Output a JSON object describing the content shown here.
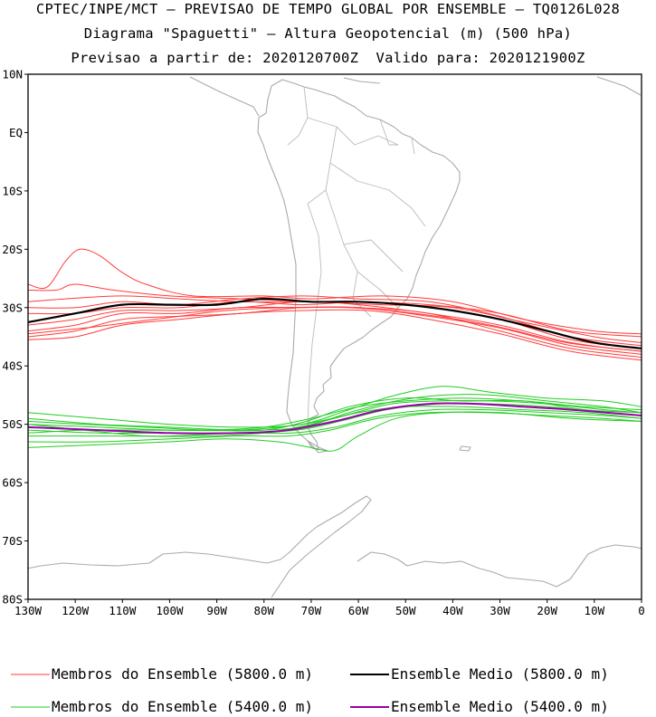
{
  "header": {
    "line1": "CPTEC/INPE/MCT — PREVISAO DE TEMPO GLOBAL POR ENSEMBLE — TQ0126L028",
    "line2": "Diagrama \"Spaguetti\" — Altura Geopotencial (m) (500 hPa)",
    "line3": "Previsao a partir de: 2020120700Z  Valido para: 2020121900Z"
  },
  "map": {
    "lon_range": [
      -130,
      0
    ],
    "lat_range": [
      -80,
      10
    ],
    "lat_ticks": [
      "10N",
      "EQ",
      "10S",
      "20S",
      "30S",
      "40S",
      "50S",
      "60S",
      "70S",
      "80S"
    ],
    "lon_ticks": [
      "130W",
      "120W",
      "110W",
      "100W",
      "90W",
      "80W",
      "70W",
      "60W",
      "50W",
      "40W",
      "30W",
      "20W",
      "10W",
      "0"
    ],
    "coastline_color": "#aaaaaa"
  },
  "legend": {
    "member_5800": "Membros do Ensemble (5800.0 m)",
    "mean_5800": "Ensemble Medio (5800.0 m)",
    "member_5400": "Membros do Ensemble (5400.0 m)",
    "mean_5400": "Ensemble Medio (5400.0 m)"
  },
  "colors": {
    "member_5800": "#ff3b3b",
    "mean_5800": "#000000",
    "member_5400": "#22cc22",
    "mean_5400": "#9900aa"
  },
  "chart_data": {
    "type": "line",
    "x_unit": "longitude (deg)",
    "y_unit": "latitude (deg)",
    "contour_5800_mean": [
      [
        -130,
        -32.5
      ],
      [
        -120,
        -31
      ],
      [
        -110,
        -29.5
      ],
      [
        -100,
        -29.5
      ],
      [
        -90,
        -29.5
      ],
      [
        -80,
        -28.5
      ],
      [
        -70,
        -29
      ],
      [
        -60,
        -29
      ],
      [
        -50,
        -29.5
      ],
      [
        -40,
        -30.5
      ],
      [
        -30,
        -32
      ],
      [
        -20,
        -34
      ],
      [
        -10,
        -36
      ],
      [
        0,
        -37
      ]
    ],
    "contour_5800_members": [
      [
        [
          -130,
          -26
        ],
        [
          -126,
          -26.5
        ],
        [
          -122,
          -22
        ],
        [
          -119,
          -20
        ],
        [
          -115,
          -21
        ],
        [
          -110,
          -24
        ],
        [
          -105,
          -26
        ],
        [
          -95,
          -28
        ],
        [
          -80,
          -28
        ],
        [
          -70,
          -28.5
        ],
        [
          -55,
          -28
        ],
        [
          -40,
          -29
        ],
        [
          -25,
          -32
        ],
        [
          -10,
          -34
        ],
        [
          0,
          -34.5
        ]
      ],
      [
        [
          -130,
          -27
        ],
        [
          -124,
          -27
        ],
        [
          -120,
          -26
        ],
        [
          -112,
          -27
        ],
        [
          -100,
          -28
        ],
        [
          -85,
          -28.5
        ],
        [
          -70,
          -29
        ],
        [
          -55,
          -29.5
        ],
        [
          -40,
          -30
        ],
        [
          -25,
          -32.5
        ],
        [
          -10,
          -35
        ],
        [
          0,
          -36
        ]
      ],
      [
        [
          -130,
          -29
        ],
        [
          -122,
          -28.5
        ],
        [
          -110,
          -28
        ],
        [
          -98,
          -28.5
        ],
        [
          -85,
          -29
        ],
        [
          -72,
          -29
        ],
        [
          -60,
          -29
        ],
        [
          -45,
          -29.5
        ],
        [
          -30,
          -31
        ],
        [
          -15,
          -34
        ],
        [
          0,
          -35
        ]
      ],
      [
        [
          -130,
          -30
        ],
        [
          -120,
          -30
        ],
        [
          -110,
          -29
        ],
        [
          -98,
          -29.5
        ],
        [
          -85,
          -28.5
        ],
        [
          -72,
          -28
        ],
        [
          -60,
          -28.5
        ],
        [
          -45,
          -29
        ],
        [
          -30,
          -31.5
        ],
        [
          -15,
          -35
        ],
        [
          0,
          -36.5
        ]
      ],
      [
        [
          -130,
          -31
        ],
        [
          -120,
          -31
        ],
        [
          -110,
          -30
        ],
        [
          -98,
          -30
        ],
        [
          -85,
          -29
        ],
        [
          -72,
          -29.5
        ],
        [
          -58,
          -29
        ],
        [
          -45,
          -30
        ],
        [
          -30,
          -32
        ],
        [
          -15,
          -35.5
        ],
        [
          0,
          -37
        ]
      ],
      [
        [
          -130,
          -33
        ],
        [
          -120,
          -32
        ],
        [
          -110,
          -30.5
        ],
        [
          -98,
          -30.5
        ],
        [
          -85,
          -30
        ],
        [
          -72,
          -29
        ],
        [
          -60,
          -29.5
        ],
        [
          -45,
          -31
        ],
        [
          -30,
          -33
        ],
        [
          -15,
          -36
        ],
        [
          0,
          -37.5
        ]
      ],
      [
        [
          -130,
          -34
        ],
        [
          -120,
          -33
        ],
        [
          -110,
          -31
        ],
        [
          -98,
          -31
        ],
        [
          -85,
          -30
        ],
        [
          -72,
          -30
        ],
        [
          -60,
          -30
        ],
        [
          -45,
          -31.5
        ],
        [
          -30,
          -33.5
        ],
        [
          -15,
          -36.5
        ],
        [
          0,
          -38
        ]
      ],
      [
        [
          -130,
          -35
        ],
        [
          -120,
          -34
        ],
        [
          -110,
          -32
        ],
        [
          -98,
          -31.5
        ],
        [
          -85,
          -31
        ],
        [
          -72,
          -30
        ],
        [
          -60,
          -30
        ],
        [
          -45,
          -31
        ],
        [
          -30,
          -34
        ],
        [
          -15,
          -37
        ],
        [
          0,
          -38.5
        ]
      ],
      [
        [
          -130,
          -35.5
        ],
        [
          -120,
          -35
        ],
        [
          -110,
          -33
        ],
        [
          -98,
          -32
        ],
        [
          -85,
          -31
        ],
        [
          -72,
          -30.5
        ],
        [
          -58,
          -30.5
        ],
        [
          -45,
          -32
        ],
        [
          -30,
          -34.5
        ],
        [
          -15,
          -37.5
        ],
        [
          0,
          -39
        ]
      ],
      [
        [
          -130,
          -34.5
        ],
        [
          -118,
          -33.5
        ],
        [
          -108,
          -32.5
        ],
        [
          -98,
          -31.5
        ],
        [
          -88,
          -30.5
        ],
        [
          -75,
          -30
        ],
        [
          -62,
          -30
        ],
        [
          -48,
          -31
        ],
        [
          -32,
          -33
        ],
        [
          -16,
          -36
        ],
        [
          0,
          -37.5
        ]
      ]
    ],
    "contour_5400_mean": [
      [
        -130,
        -50.5
      ],
      [
        -115,
        -51
      ],
      [
        -100,
        -51.5
      ],
      [
        -85,
        -51.5
      ],
      [
        -75,
        -51
      ],
      [
        -65,
        -49.5
      ],
      [
        -55,
        -47.5
      ],
      [
        -45,
        -46.5
      ],
      [
        -35,
        -46.5
      ],
      [
        -25,
        -47
      ],
      [
        -15,
        -47.5
      ],
      [
        0,
        -48.5
      ]
    ],
    "contour_5400_members": [
      [
        [
          -130,
          -48
        ],
        [
          -115,
          -49
        ],
        [
          -100,
          -50
        ],
        [
          -85,
          -50.5
        ],
        [
          -72,
          -50
        ],
        [
          -62,
          -47.5
        ],
        [
          -52,
          -45
        ],
        [
          -42,
          -43.5
        ],
        [
          -32,
          -44.5
        ],
        [
          -20,
          -45.5
        ],
        [
          -8,
          -46
        ],
        [
          0,
          -47
        ]
      ],
      [
        [
          -130,
          -49
        ],
        [
          -115,
          -50
        ],
        [
          -100,
          -50.5
        ],
        [
          -85,
          -51
        ],
        [
          -72,
          -50.5
        ],
        [
          -62,
          -48
        ],
        [
          -52,
          -46
        ],
        [
          -42,
          -45
        ],
        [
          -32,
          -45
        ],
        [
          -20,
          -46
        ],
        [
          -8,
          -47
        ],
        [
          0,
          -48
        ]
      ],
      [
        [
          -130,
          -50
        ],
        [
          -115,
          -50.5
        ],
        [
          -100,
          -51
        ],
        [
          -85,
          -51
        ],
        [
          -72,
          -50
        ],
        [
          -63,
          -48.5
        ],
        [
          -53,
          -46.5
        ],
        [
          -43,
          -46
        ],
        [
          -32,
          -46
        ],
        [
          -20,
          -46.5
        ],
        [
          -8,
          -47.5
        ],
        [
          0,
          -48
        ]
      ],
      [
        [
          -130,
          -51
        ],
        [
          -115,
          -51.5
        ],
        [
          -100,
          -51.5
        ],
        [
          -85,
          -51.5
        ],
        [
          -73,
          -51
        ],
        [
          -64,
          -49.5
        ],
        [
          -54,
          -47.5
        ],
        [
          -43,
          -46.5
        ],
        [
          -32,
          -46.5
        ],
        [
          -20,
          -47
        ],
        [
          -8,
          -48
        ],
        [
          0,
          -48.5
        ]
      ],
      [
        [
          -130,
          -52
        ],
        [
          -115,
          -52
        ],
        [
          -100,
          -52
        ],
        [
          -85,
          -51.5
        ],
        [
          -74,
          -51.5
        ],
        [
          -65,
          -50.5
        ],
        [
          -55,
          -48.5
        ],
        [
          -44,
          -47.5
        ],
        [
          -33,
          -47.5
        ],
        [
          -20,
          -48
        ],
        [
          -8,
          -48.5
        ],
        [
          0,
          -49
        ]
      ],
      [
        [
          -130,
          -53
        ],
        [
          -115,
          -53
        ],
        [
          -100,
          -52.5
        ],
        [
          -85,
          -52
        ],
        [
          -75,
          -52
        ],
        [
          -66,
          -51
        ],
        [
          -56,
          -49
        ],
        [
          -45,
          -48
        ],
        [
          -33,
          -48
        ],
        [
          -20,
          -48.5
        ],
        [
          -8,
          -49
        ],
        [
          0,
          -49.5
        ]
      ],
      [
        [
          -130,
          -54
        ],
        [
          -115,
          -53.5
        ],
        [
          -100,
          -53
        ],
        [
          -88,
          -52.5
        ],
        [
          -77,
          -53
        ],
        [
          -70,
          -54
        ],
        [
          -65,
          -54.5
        ],
        [
          -60,
          -52
        ],
        [
          -52,
          -49
        ],
        [
          -42,
          -48
        ],
        [
          -30,
          -48
        ],
        [
          -15,
          -49
        ],
        [
          0,
          -49.5
        ]
      ],
      [
        [
          -130,
          -51.5
        ],
        [
          -118,
          -51
        ],
        [
          -105,
          -51
        ],
        [
          -92,
          -51
        ],
        [
          -80,
          -50.5
        ],
        [
          -70,
          -49
        ],
        [
          -60,
          -47
        ],
        [
          -50,
          -46
        ],
        [
          -38,
          -45.5
        ],
        [
          -25,
          -46
        ],
        [
          -12,
          -47
        ],
        [
          0,
          -47.5
        ]
      ],
      [
        [
          -130,
          -50
        ],
        [
          -118,
          -51
        ],
        [
          -105,
          -52
        ],
        [
          -92,
          -52
        ],
        [
          -80,
          -51.5
        ],
        [
          -70,
          -50
        ],
        [
          -60,
          -48
        ],
        [
          -50,
          -47
        ],
        [
          -38,
          -47
        ],
        [
          -25,
          -47.5
        ],
        [
          -12,
          -48
        ],
        [
          0,
          -49
        ]
      ],
      [
        [
          -130,
          -49.5
        ],
        [
          -118,
          -50
        ],
        [
          -105,
          -50.5
        ],
        [
          -92,
          -51
        ],
        [
          -80,
          -51
        ],
        [
          -71,
          -49.5
        ],
        [
          -62,
          -47
        ],
        [
          -50,
          -45.5
        ],
        [
          -38,
          -46
        ],
        [
          -25,
          -46
        ],
        [
          -12,
          -47.5
        ],
        [
          0,
          -48
        ]
      ]
    ]
  }
}
